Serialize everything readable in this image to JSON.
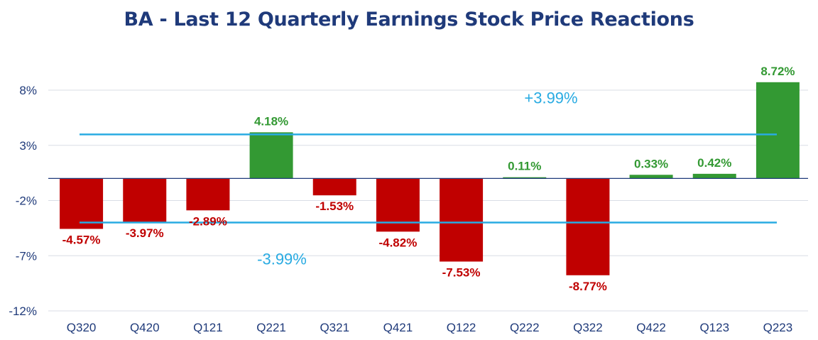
{
  "chart_data": {
    "type": "bar",
    "title": "BA - Last 12 Quarterly Earnings Stock Price Reactions",
    "categories": [
      "Q320",
      "Q420",
      "Q121",
      "Q221",
      "Q321",
      "Q421",
      "Q122",
      "Q222",
      "Q322",
      "Q422",
      "Q123",
      "Q223"
    ],
    "values": [
      -4.57,
      -3.97,
      -2.89,
      4.18,
      -1.53,
      -4.82,
      -7.53,
      0.11,
      -8.77,
      0.33,
      0.42,
      8.72
    ],
    "value_labels": [
      "-4.57%",
      "-3.97%",
      "-2.89%",
      "4.18%",
      "-1.53%",
      "-4.82%",
      "-7.53%",
      "0.11%",
      "-8.77%",
      "0.33%",
      "0.42%",
      "8.72%"
    ],
    "ylim": [
      -12,
      11.5
    ],
    "yticks": [
      8,
      3,
      -2,
      -7,
      -12
    ],
    "ytick_labels": [
      "8%",
      "3%",
      "-2%",
      "-7%",
      "-12%"
    ],
    "reference_lines": [
      {
        "value": 3.99,
        "label": "+3.99%"
      },
      {
        "value": -3.99,
        "label": "-3.99%"
      }
    ],
    "colors": {
      "positive": "#339933",
      "negative": "#c00000",
      "reference": "#29abe2",
      "grid": "#d9dde6",
      "axis": "#1f3a7a"
    },
    "grid": true,
    "legend": "none"
  }
}
